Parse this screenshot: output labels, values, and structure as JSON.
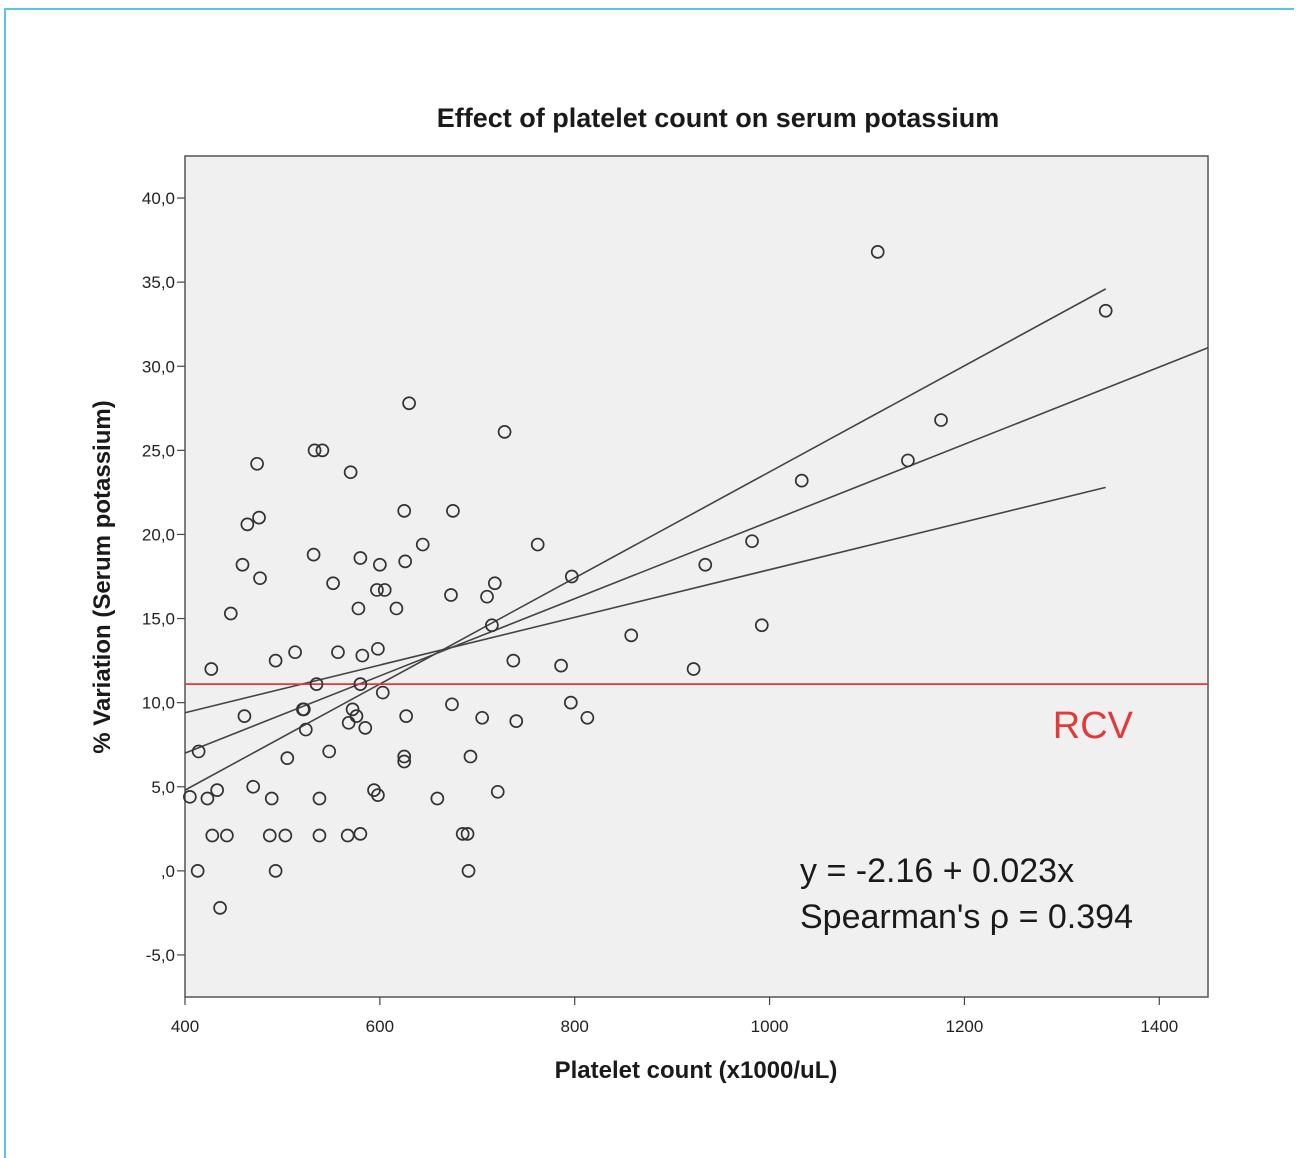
{
  "chart_data": {
    "type": "scatter",
    "title": "Effect of platelet count on serum potassium",
    "xlabel": "Platelet count (x1000/uL)",
    "ylabel": "% Variation (Serum potassium)",
    "xlim": [
      400,
      1450
    ],
    "ylim": [
      -7.5,
      42.5
    ],
    "xticks": [
      400,
      600,
      800,
      1000,
      1200,
      1400
    ],
    "xtick_labels": [
      "400",
      "600",
      "800",
      "1000",
      "1200",
      "1400"
    ],
    "yticks": [
      -5,
      0,
      5,
      10,
      15,
      20,
      25,
      30,
      35,
      40
    ],
    "ytick_labels": [
      "-5,0",
      ",0",
      "5,0",
      "10,0",
      "15,0",
      "20,0",
      "25,0",
      "30,0",
      "35,0",
      "40,0"
    ],
    "grid": false,
    "background": "#f0f0f0",
    "point_color": "#333333",
    "line_color": "#444444",
    "rcv_color": "#e03a3a",
    "rcv_value": 11.1,
    "rcv_label": "RCV",
    "equation": "y = -2.16 + 0.023x",
    "spearman": "Spearman's ρ = 0.394",
    "fit_line": {
      "x": [
        400,
        1450
      ],
      "y": [
        7.0,
        31.1
      ]
    },
    "ci_upper": {
      "x": [
        400,
        1345
      ],
      "y": [
        4.8,
        34.6
      ]
    },
    "ci_lower": {
      "x": [
        400,
        1345
      ],
      "y": [
        9.4,
        22.8
      ]
    },
    "points": [
      [
        405,
        4.4
      ],
      [
        413,
        0.0
      ],
      [
        414,
        7.1
      ],
      [
        423,
        4.3
      ],
      [
        427,
        12.0
      ],
      [
        428,
        2.1
      ],
      [
        433,
        4.8
      ],
      [
        436,
        -2.2
      ],
      [
        443,
        2.1
      ],
      [
        447,
        15.3
      ],
      [
        459,
        18.2
      ],
      [
        461,
        9.2
      ],
      [
        464,
        20.6
      ],
      [
        470,
        5.0
      ],
      [
        474,
        24.2
      ],
      [
        476,
        21.0
      ],
      [
        477,
        17.4
      ],
      [
        487,
        2.1
      ],
      [
        489,
        4.3
      ],
      [
        493,
        12.5
      ],
      [
        493,
        0.0
      ],
      [
        503,
        2.1
      ],
      [
        505,
        6.7
      ],
      [
        513,
        13.0
      ],
      [
        521,
        9.6
      ],
      [
        522,
        9.6
      ],
      [
        524,
        8.4
      ],
      [
        532,
        18.8
      ],
      [
        533,
        25.0
      ],
      [
        535,
        11.1
      ],
      [
        538,
        4.3
      ],
      [
        538,
        2.1
      ],
      [
        541,
        25.0
      ],
      [
        548,
        7.1
      ],
      [
        552,
        17.1
      ],
      [
        557,
        13.0
      ],
      [
        567,
        2.1
      ],
      [
        568,
        8.8
      ],
      [
        570,
        23.7
      ],
      [
        572,
        9.6
      ],
      [
        576,
        9.2
      ],
      [
        580,
        2.2
      ],
      [
        578,
        15.6
      ],
      [
        580,
        18.6
      ],
      [
        580,
        11.1
      ],
      [
        582,
        12.8
      ],
      [
        585,
        8.5
      ],
      [
        594,
        4.8
      ],
      [
        597,
        16.7
      ],
      [
        598,
        4.5
      ],
      [
        598,
        13.2
      ],
      [
        600,
        18.2
      ],
      [
        603,
        10.6
      ],
      [
        605,
        16.7
      ],
      [
        617,
        15.6
      ],
      [
        625,
        21.4
      ],
      [
        625,
        6.8
      ],
      [
        625,
        6.5
      ],
      [
        626,
        18.4
      ],
      [
        627,
        9.2
      ],
      [
        630,
        27.8
      ],
      [
        644,
        19.4
      ],
      [
        659,
        4.3
      ],
      [
        673,
        16.4
      ],
      [
        674,
        9.9
      ],
      [
        675,
        21.4
      ],
      [
        685,
        2.2
      ],
      [
        690,
        2.2
      ],
      [
        691,
        0.0
      ],
      [
        693,
        6.8
      ],
      [
        705,
        9.1
      ],
      [
        710,
        16.3
      ],
      [
        715,
        14.6
      ],
      [
        718,
        17.1
      ],
      [
        721,
        4.7
      ],
      [
        728,
        26.1
      ],
      [
        737,
        12.5
      ],
      [
        740,
        8.9
      ],
      [
        762,
        19.4
      ],
      [
        786,
        12.2
      ],
      [
        797,
        17.5
      ],
      [
        796,
        10.0
      ],
      [
        813,
        9.1
      ],
      [
        858,
        14.0
      ],
      [
        922,
        12.0
      ],
      [
        934,
        18.2
      ],
      [
        982,
        19.6
      ],
      [
        992,
        14.6
      ],
      [
        1033,
        23.2
      ],
      [
        1111,
        36.8
      ],
      [
        1142,
        24.4
      ],
      [
        1176,
        26.8
      ],
      [
        1345,
        33.3
      ]
    ]
  }
}
